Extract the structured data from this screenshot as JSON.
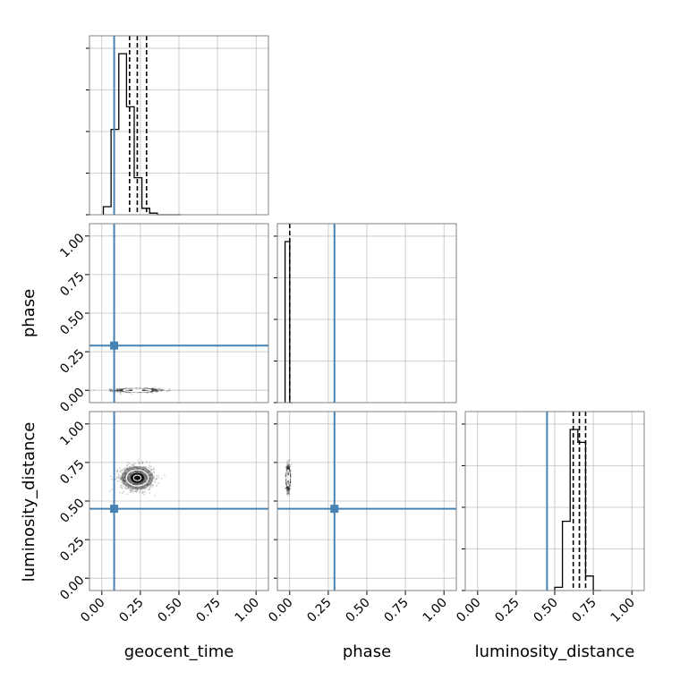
{
  "chart_data": {
    "type": "corner",
    "parameters": [
      "geocent_time",
      "phase",
      "luminosity_distance"
    ],
    "axis_labels": [
      "geocent_time",
      "phase",
      "luminosity_distance"
    ],
    "tick_values": [
      0,
      0.25,
      0.5,
      0.75,
      1.0
    ],
    "tick_labels": [
      "0.00",
      "0.25",
      "0.50",
      "0.75",
      "1.00"
    ],
    "range": [
      -0.08,
      1.08
    ],
    "grid": true,
    "colors": {
      "truth": "#4682b4",
      "hist": "#000000",
      "grid": "#c0c0c0",
      "frame": "#808080"
    },
    "truths": {
      "geocent_time": 0.08,
      "phase": 0.29,
      "luminosity_distance": 0.45
    },
    "histograms": {
      "geocent_time": {
        "bins": [
          0.01,
          0.06,
          0.11,
          0.16,
          0.21,
          0.26,
          0.31,
          0.36,
          0.41,
          0.46,
          0.51
        ],
        "counts": [
          0.05,
          0.53,
          1.0,
          0.67,
          0.23,
          0.04,
          0.01,
          0.0,
          0.0,
          0.0
        ]
      },
      "phase": {
        "bins": [
          -0.03,
          -0.015,
          0.0,
          0.015
        ],
        "counts": [
          1.0,
          1.0,
          0.0
        ]
      },
      "luminosity_distance": {
        "bins": [
          0.5,
          0.55,
          0.6,
          0.65,
          0.7,
          0.75,
          0.8
        ],
        "counts": [
          0.02,
          0.43,
          1.0,
          0.92,
          0.09,
          0.0
        ]
      }
    },
    "quantile_lines": {
      "geocent_time": [
        0.18,
        0.23,
        0.29
      ],
      "phase": [
        0.0
      ],
      "luminosity_distance": [
        0.62,
        0.66,
        0.7
      ]
    },
    "scatter_panels": [
      {
        "x": "geocent_time",
        "y": "phase",
        "center": [
          0.23,
          0.0
        ],
        "spread": [
          0.07,
          0.006
        ]
      },
      {
        "x": "geocent_time",
        "y": "luminosity_distance",
        "center": [
          0.23,
          0.65
        ],
        "spread": [
          0.055,
          0.04
        ]
      },
      {
        "x": "phase",
        "y": "luminosity_distance",
        "center": [
          -0.01,
          0.65
        ],
        "spread": [
          0.006,
          0.04
        ]
      }
    ]
  }
}
